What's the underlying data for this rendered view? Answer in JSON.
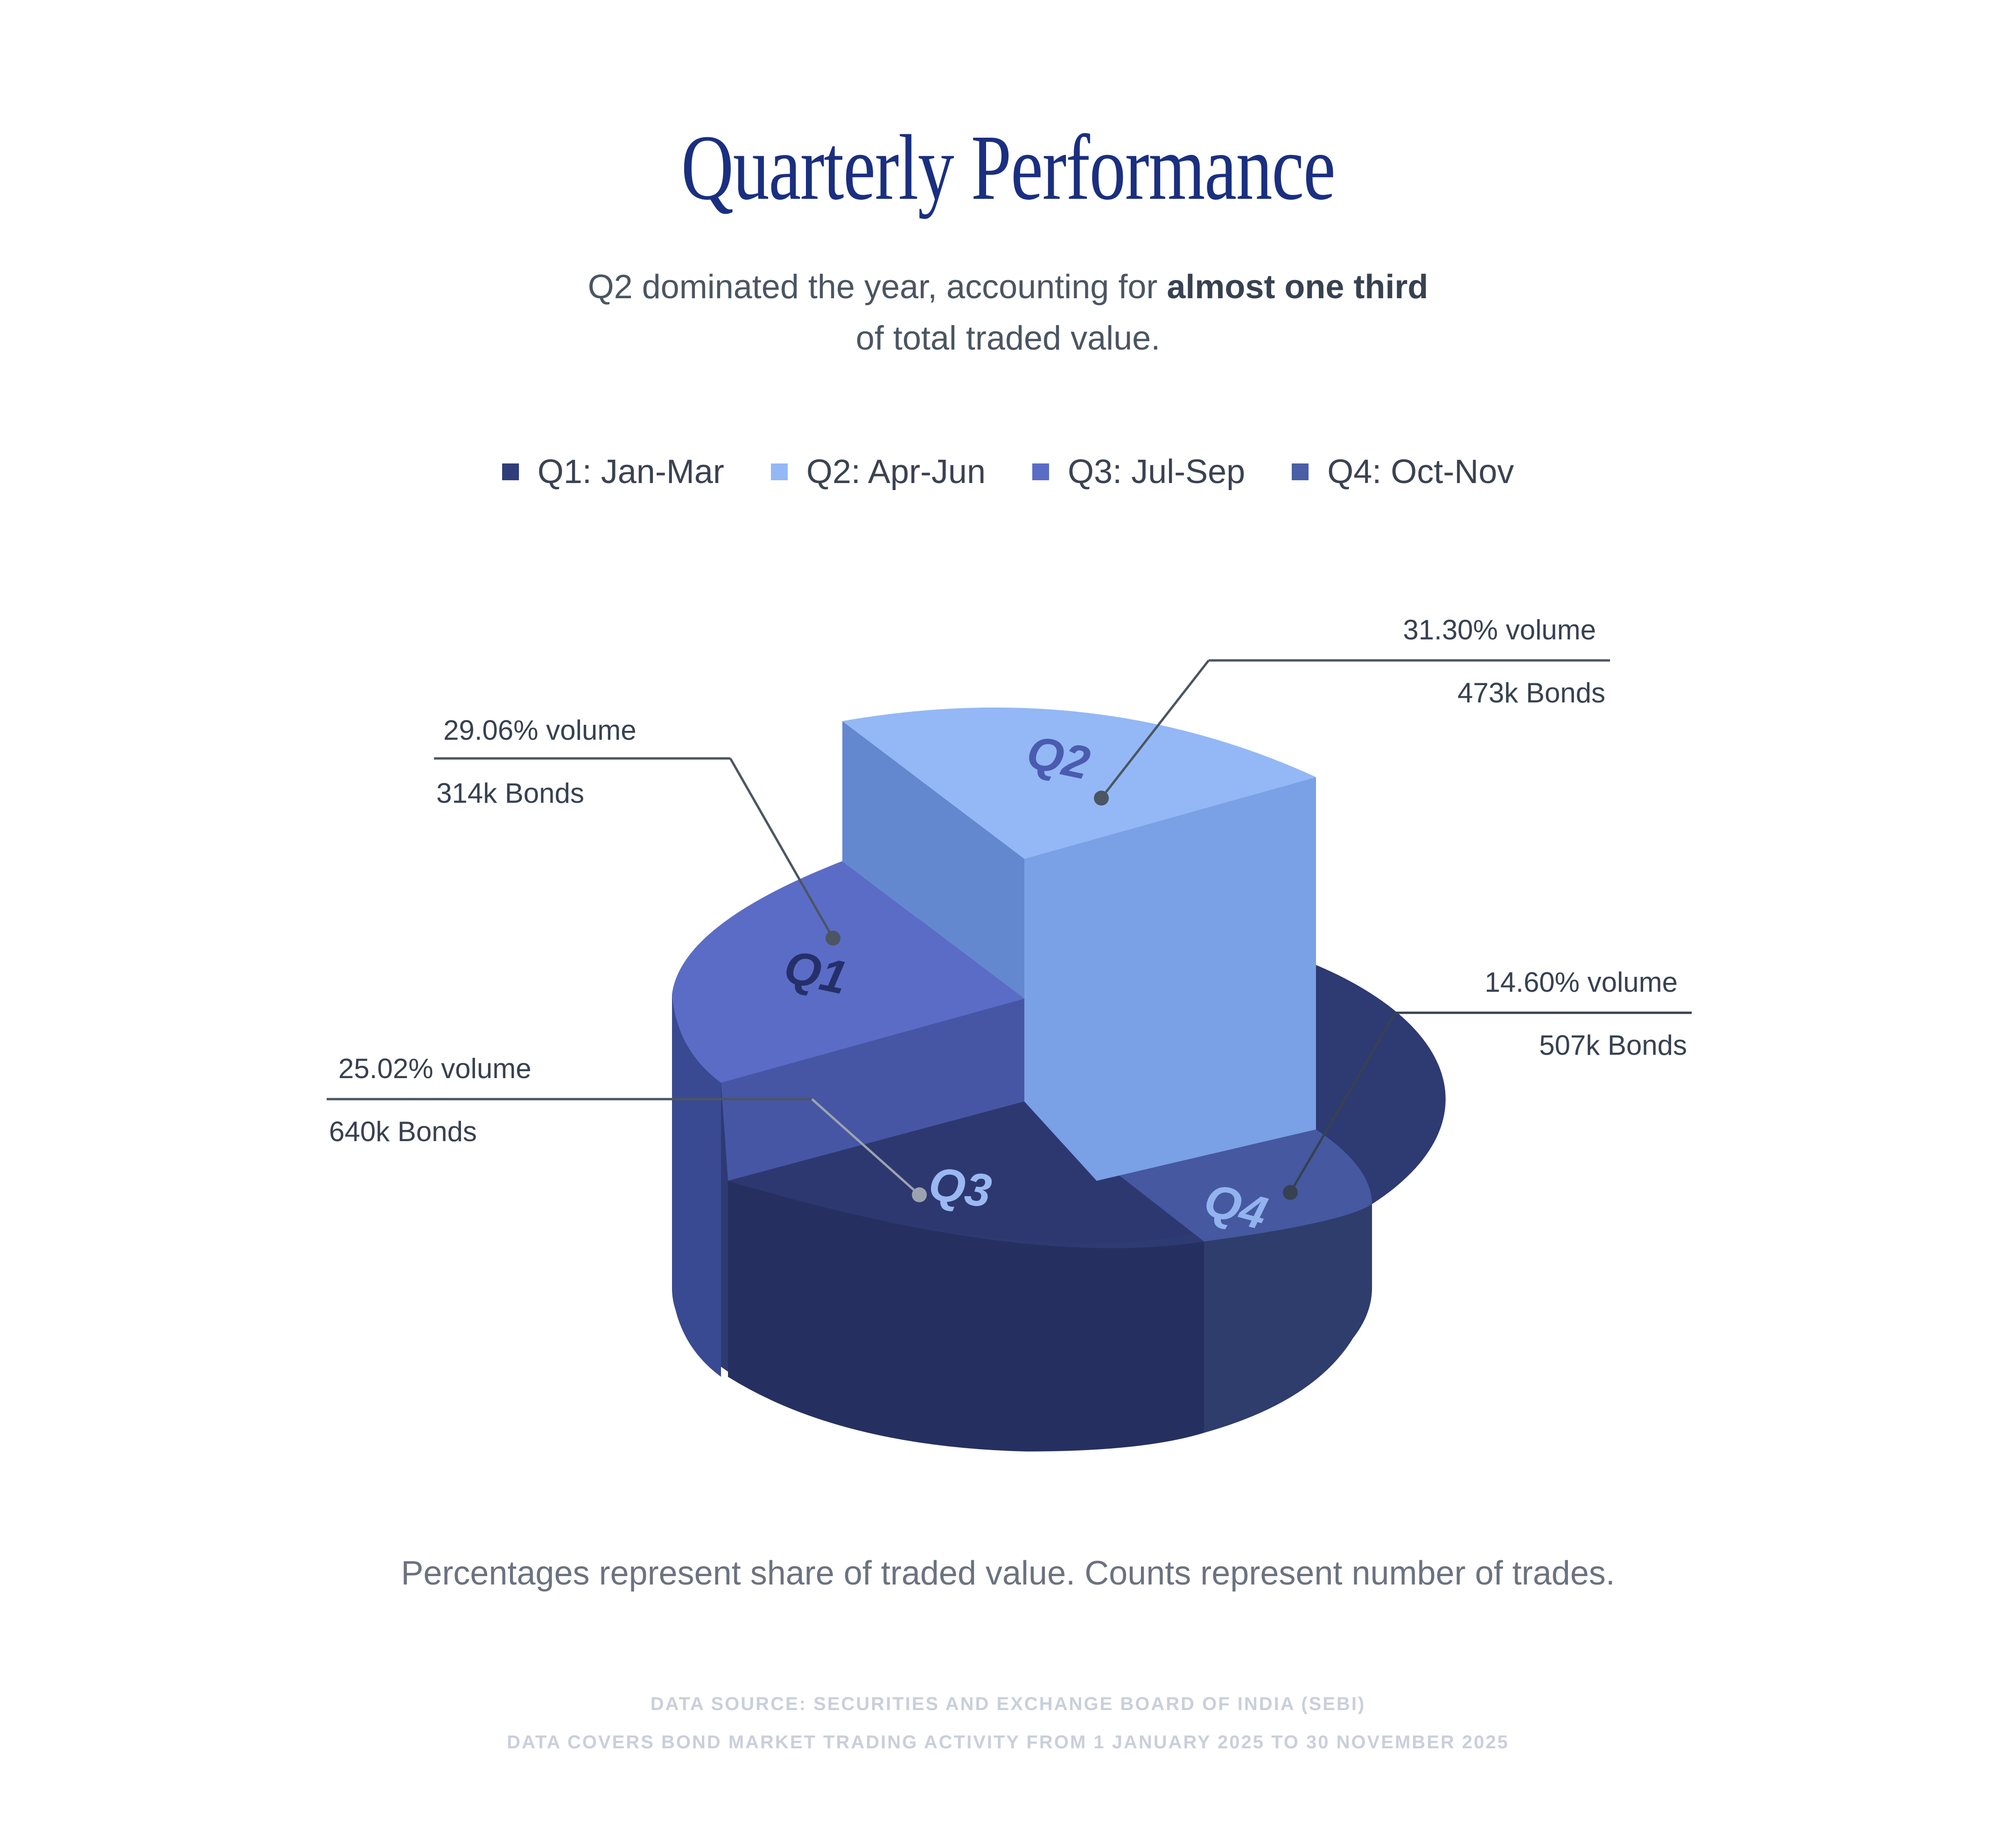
{
  "header": {
    "title": "Quarterly Performance",
    "subtitle_part1": "Q2 dominated the year, accounting for ",
    "subtitle_bold": "almost one third",
    "subtitle_part2": "of total traded value."
  },
  "legend": [
    {
      "label": "Q1: Jan-Mar",
      "color": "#2f3d7a"
    },
    {
      "label": "Q2: Apr-Jun",
      "color": "#93b8f5"
    },
    {
      "label": "Q3: Jul-Sep",
      "color": "#5b6cc7"
    },
    {
      "label": "Q4: Oct-Nov",
      "color": "#4a5fa6"
    }
  ],
  "chart_data": {
    "type": "pie",
    "slices": [
      {
        "label": "Q1",
        "volume": "29.06% volume",
        "bonds": "314k Bonds",
        "value": 29.06,
        "color": "#5b6cc7"
      },
      {
        "label": "Q2",
        "volume": "31.30% volume",
        "bonds": "473k Bonds",
        "value": 31.3,
        "color": "#93b8f5"
      },
      {
        "label": "Q3",
        "volume": "25.02% volume",
        "bonds": "640k Bonds",
        "value": 25.02,
        "color": "#2f3d7a"
      },
      {
        "label": "Q4",
        "volume": "14.60% volume",
        "bonds": "507k Bonds",
        "value": 14.6,
        "color": "#4a5fa6"
      }
    ],
    "note": "Percentages represent share of traded value. Counts represent number of trades."
  },
  "footer": {
    "line1": "DATA SOURCE: SECURITIES AND EXCHANGE BOARD OF INDIA (SEBI)",
    "line2": "DATA COVERS BOND MARKET TRADING ACTIVITY FROM 1 JANUARY 2025 TO 30 NOVEMBER 2025"
  }
}
